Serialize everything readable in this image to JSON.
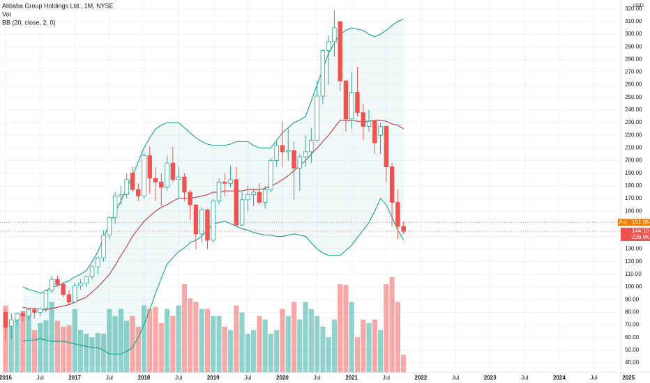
{
  "chart_data": {
    "type": "candlestick",
    "title": "Alibaba Group Holdings Ltd., 1M, NYSE",
    "volume_title": "Vol",
    "indicator_title": "BB (20, close, 2, 0)",
    "currency": "USD",
    "up_color": "#26a69a",
    "down_color": "#ef5350",
    "x": [
      "2016-01",
      "2016-02",
      "2016-03",
      "2016-04",
      "2016-05",
      "2016-06",
      "2016-07",
      "2016-08",
      "2016-09",
      "2016-10",
      "2016-11",
      "2016-12",
      "2017-01",
      "2017-02",
      "2017-03",
      "2017-04",
      "2017-05",
      "2017-06",
      "2017-07",
      "2017-08",
      "2017-09",
      "2017-10",
      "2017-11",
      "2017-12",
      "2018-01",
      "2018-02",
      "2018-03",
      "2018-04",
      "2018-05",
      "2018-06",
      "2018-07",
      "2018-08",
      "2018-09",
      "2018-10",
      "2018-11",
      "2018-12",
      "2019-01",
      "2019-02",
      "2019-03",
      "2019-04",
      "2019-05",
      "2019-06",
      "2019-07",
      "2019-08",
      "2019-09",
      "2019-10",
      "2019-11",
      "2019-12",
      "2020-01",
      "2020-02",
      "2020-03",
      "2020-04",
      "2020-05",
      "2020-06",
      "2020-07",
      "2020-08",
      "2020-09",
      "2020-10",
      "2020-11",
      "2020-12",
      "2021-01",
      "2021-02",
      "2021-03",
      "2021-04",
      "2021-05",
      "2021-06",
      "2021-07",
      "2021-08",
      "2021-09",
      "2021-10"
    ],
    "open": [
      80,
      69,
      74,
      79,
      77,
      82,
      80,
      83,
      97,
      106,
      102,
      94,
      88,
      101,
      103,
      108,
      116,
      123,
      141,
      155,
      172,
      173,
      190,
      177,
      172,
      204,
      186,
      183,
      179,
      198,
      185,
      187,
      175,
      165,
      142,
      161,
      137,
      168,
      183,
      182,
      185,
      149,
      169,
      173,
      175,
      167,
      177,
      200,
      212,
      207,
      208,
      194,
      203,
      207,
      216,
      251,
      287,
      294,
      310,
      263,
      233,
      254,
      238,
      227,
      231,
      220,
      227,
      195,
      167,
      148
    ],
    "high": [
      81,
      79,
      80,
      81,
      83,
      83,
      84,
      98,
      109,
      109,
      104,
      98,
      103,
      106,
      109,
      117,
      124,
      145,
      156,
      175,
      180,
      190,
      195,
      182,
      206,
      211,
      195,
      190,
      204,
      211,
      195,
      190,
      177,
      165,
      163,
      162,
      170,
      186,
      190,
      196,
      195,
      175,
      180,
      178,
      182,
      180,
      202,
      215,
      231,
      225,
      215,
      205,
      220,
      226,
      263,
      288,
      299,
      319,
      310,
      264,
      270,
      274,
      245,
      240,
      232,
      230,
      228,
      198,
      177,
      152
    ],
    "low": [
      57,
      59,
      70,
      73,
      74,
      75,
      77,
      80,
      95,
      100,
      92,
      86,
      87,
      98,
      100,
      106,
      110,
      120,
      138,
      150,
      165,
      170,
      175,
      168,
      170,
      174,
      168,
      164,
      176,
      183,
      170,
      168,
      153,
      130,
      135,
      130,
      135,
      165,
      172,
      179,
      148,
      148,
      160,
      164,
      165,
      162,
      175,
      195,
      195,
      200,
      169,
      176,
      195,
      198,
      215,
      245,
      260,
      282,
      255,
      223,
      225,
      235,
      216,
      223,
      205,
      205,
      183,
      148,
      138,
      142
    ],
    "close": [
      68,
      74,
      79,
      77,
      82,
      80,
      83,
      97,
      106,
      102,
      94,
      88,
      101,
      103,
      108,
      116,
      123,
      141,
      155,
      172,
      173,
      185,
      177,
      172,
      204,
      186,
      183,
      179,
      198,
      185,
      187,
      175,
      165,
      142,
      161,
      137,
      168,
      183,
      182,
      185,
      149,
      169,
      173,
      175,
      167,
      177,
      200,
      212,
      207,
      208,
      194,
      203,
      207,
      216,
      251,
      287,
      294,
      305,
      263,
      233,
      254,
      238,
      227,
      231,
      214,
      227,
      195,
      167,
      148,
      144
    ],
    "volume": [
      285,
      210,
      240,
      261,
      261,
      180,
      210,
      222,
      300,
      220,
      195,
      200,
      270,
      180,
      165,
      150,
      168,
      165,
      270,
      240,
      270,
      220,
      240,
      195,
      285,
      270,
      279,
      210,
      270,
      240,
      285,
      375,
      315,
      300,
      270,
      270,
      240,
      240,
      195,
      180,
      285,
      255,
      165,
      180,
      240,
      225,
      165,
      180,
      270,
      240,
      300,
      225,
      300,
      270,
      240,
      195,
      150,
      225,
      375,
      372,
      300,
      150,
      225,
      210,
      225,
      180,
      375,
      405,
      300,
      75
    ],
    "bb": {
      "upper_color": "#089981",
      "basis_color": "#b22833",
      "fill_color": "#26a69a",
      "upper": [
        null,
        null,
        null,
        100,
        98,
        97,
        95,
        97,
        100,
        101,
        103,
        105,
        108,
        110,
        113,
        120,
        128,
        139,
        150,
        159,
        168,
        178,
        188,
        199,
        210,
        218,
        225,
        228,
        230,
        230,
        230,
        226,
        222,
        218,
        215,
        213,
        212,
        212,
        212,
        213,
        215,
        215,
        215,
        212,
        210,
        210,
        210,
        216,
        222,
        226,
        230,
        232,
        235,
        247,
        260,
        272,
        285,
        293,
        300,
        303,
        305,
        304,
        303,
        300,
        298,
        300,
        303,
        307,
        310,
        312
      ],
      "basis": [
        null,
        null,
        null,
        84,
        83,
        83,
        82,
        82,
        83,
        84,
        85,
        86,
        88,
        90,
        92,
        96,
        100,
        105,
        110,
        117,
        125,
        132,
        140,
        146,
        152,
        156,
        160,
        163,
        165,
        168,
        170,
        170,
        170,
        171,
        172,
        173,
        175,
        175,
        176,
        176,
        176,
        176,
        177,
        177,
        177,
        178,
        180,
        182,
        185,
        188,
        192,
        196,
        200,
        205,
        210,
        215,
        220,
        226,
        232,
        232,
        232,
        231,
        231,
        231,
        232,
        232,
        231,
        229,
        228,
        225
      ],
      "lower": [
        null,
        null,
        null,
        57,
        58,
        58,
        59,
        58,
        57,
        57,
        57,
        56,
        55,
        54,
        53,
        52,
        52,
        50,
        47,
        47,
        47,
        49,
        52,
        60,
        70,
        82,
        95,
        107,
        118,
        123,
        128,
        131,
        135,
        137,
        140,
        145,
        150,
        151,
        152,
        150,
        148,
        146,
        145,
        143,
        142,
        141,
        141,
        140,
        140,
        141,
        142,
        141,
        140,
        135,
        130,
        127,
        125,
        125,
        125,
        129,
        133,
        139,
        145,
        151,
        160,
        170,
        165,
        155,
        145,
        137
      ]
    },
    "last_price": {
      "value": 144.1,
      "label": "144.10",
      "color": "#ef5350"
    },
    "last_volume_label": "226.9K",
    "pre_market": {
      "tag": "Pre",
      "value": 151.06,
      "label": "151.06",
      "color": "#f57c00"
    },
    "ylim": [
      32.3,
      327
    ],
    "yticks": [
      {
        "value": 40,
        "label": "40.00"
      },
      {
        "value": 50,
        "label": "50.00"
      },
      {
        "value": 60,
        "label": "60.00"
      },
      {
        "value": 70,
        "label": "70.00"
      },
      {
        "value": 80,
        "label": "80.00"
      },
      {
        "value": 90,
        "label": "90.00"
      },
      {
        "value": 100,
        "label": "100.00"
      },
      {
        "value": 110,
        "label": "110.00"
      },
      {
        "value": 120,
        "label": "120.00"
      },
      {
        "value": 130,
        "label": "130.00"
      },
      {
        "value": 140,
        "label": "140.00"
      },
      {
        "value": 150,
        "label": "150.00"
      },
      {
        "value": 160,
        "label": "160.00"
      },
      {
        "value": 170,
        "label": "170.00"
      },
      {
        "value": 180,
        "label": "180.00"
      },
      {
        "value": 190,
        "label": "190.00"
      },
      {
        "value": 200,
        "label": "200.00"
      },
      {
        "value": 210,
        "label": "210.00"
      },
      {
        "value": 220,
        "label": "220.00"
      },
      {
        "value": 230,
        "label": "230.00"
      },
      {
        "value": 240,
        "label": "240.00"
      },
      {
        "value": 250,
        "label": "250.00"
      },
      {
        "value": 260,
        "label": "260.00"
      },
      {
        "value": 270,
        "label": "270.00"
      },
      {
        "value": 280,
        "label": "280.00"
      },
      {
        "value": 290,
        "label": "290.00"
      },
      {
        "value": 300,
        "label": "300.00"
      },
      {
        "value": 310,
        "label": "310.00"
      },
      {
        "value": 320,
        "label": "320.00"
      }
    ],
    "xticks": [
      {
        "value": "2016-01",
        "label": "2016"
      },
      {
        "value": "2016-07",
        "label": "Jul"
      },
      {
        "value": "2017-01",
        "label": "2017"
      },
      {
        "value": "2017-07",
        "label": "Jul"
      },
      {
        "value": "2018-01",
        "label": "2018"
      },
      {
        "value": "2018-07",
        "label": "Jul"
      },
      {
        "value": "2019-01",
        "label": "2019"
      },
      {
        "value": "2019-07",
        "label": "Jul"
      },
      {
        "value": "2020-01",
        "label": "2020"
      },
      {
        "value": "2020-07",
        "label": "Jul"
      },
      {
        "value": "2021-01",
        "label": "2021"
      },
      {
        "value": "2021-07",
        "label": "Jul"
      },
      {
        "value": "2022-01",
        "label": "2022"
      },
      {
        "value": "2022-07",
        "label": "Jul"
      },
      {
        "value": "2023-01",
        "label": "2023"
      },
      {
        "value": "2023-07",
        "label": "Jul"
      },
      {
        "value": "2024-01",
        "label": "2024"
      },
      {
        "value": "2024-07",
        "label": "Jul"
      },
      {
        "value": "2025-01",
        "label": "2025"
      }
    ],
    "grid": true
  }
}
